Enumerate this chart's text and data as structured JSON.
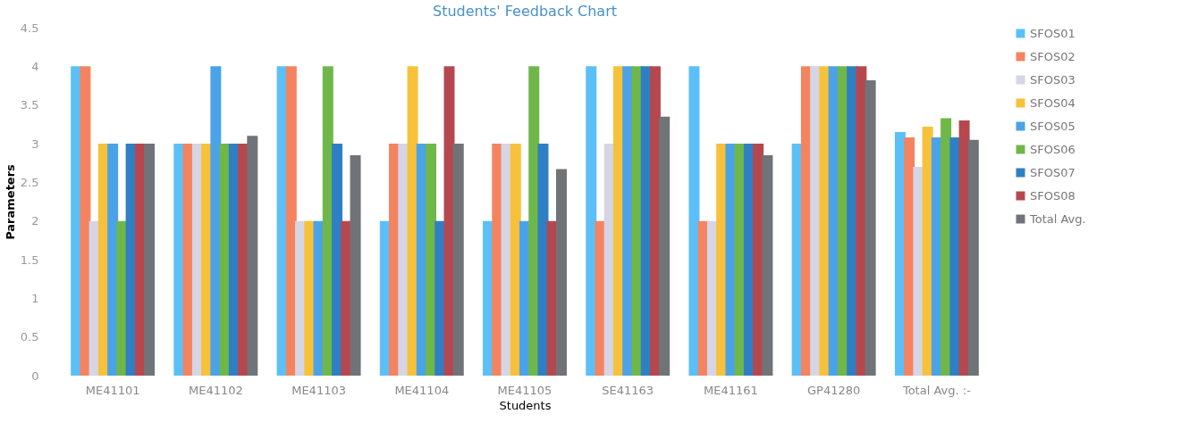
{
  "chart_data": {
    "type": "bar",
    "title": "Students' Feedback Chart",
    "xlabel": "Students",
    "ylabel": "Parameters",
    "categories": [
      "ME41101",
      "ME41102",
      "ME41103",
      "ME41104",
      "ME41105",
      "SE41163",
      "ME41161",
      "GP41280",
      "Total Avg. :-"
    ],
    "series": [
      {
        "name": "SFOS01",
        "color": "#5bc0f8",
        "values": [
          4,
          3,
          4,
          2,
          2,
          4,
          4,
          3,
          3.15
        ]
      },
      {
        "name": "SFOS02",
        "color": "#f4845f",
        "values": [
          4,
          3,
          4,
          3,
          3,
          2,
          2,
          4,
          3.08
        ]
      },
      {
        "name": "SFOS03",
        "color": "#d5d5e5",
        "values": [
          2,
          3,
          2,
          3,
          3,
          3,
          2,
          4,
          2.7
        ]
      },
      {
        "name": "SFOS04",
        "color": "#f8c13a",
        "values": [
          3,
          3,
          2,
          4,
          3,
          4,
          3,
          4,
          3.22
        ]
      },
      {
        "name": "SFOS05",
        "color": "#4aa3e8",
        "values": [
          3,
          4,
          2,
          3,
          2,
          4,
          3,
          4,
          3.08
        ]
      },
      {
        "name": "SFOS06",
        "color": "#70b74a",
        "values": [
          2,
          3,
          4,
          3,
          4,
          4,
          3,
          4,
          3.33
        ]
      },
      {
        "name": "SFOS07",
        "color": "#2f7fc4",
        "values": [
          3,
          3,
          3,
          2,
          3,
          4,
          3,
          4,
          3.08
        ]
      },
      {
        "name": "SFOS08",
        "color": "#b5484f",
        "values": [
          3,
          3,
          2,
          4,
          2,
          4,
          3,
          4,
          3.3
        ]
      },
      {
        "name": "Total Avg.",
        "color": "#707478",
        "values": [
          3,
          3.1,
          2.85,
          3,
          2.67,
          3.35,
          2.85,
          3.82,
          3.05
        ]
      }
    ],
    "ylim": [
      0,
      4.5
    ],
    "yticks": [
      0,
      0.5,
      1,
      1.5,
      2,
      2.5,
      3,
      3.5,
      4,
      4.5
    ],
    "grid": false,
    "legend": "right"
  }
}
